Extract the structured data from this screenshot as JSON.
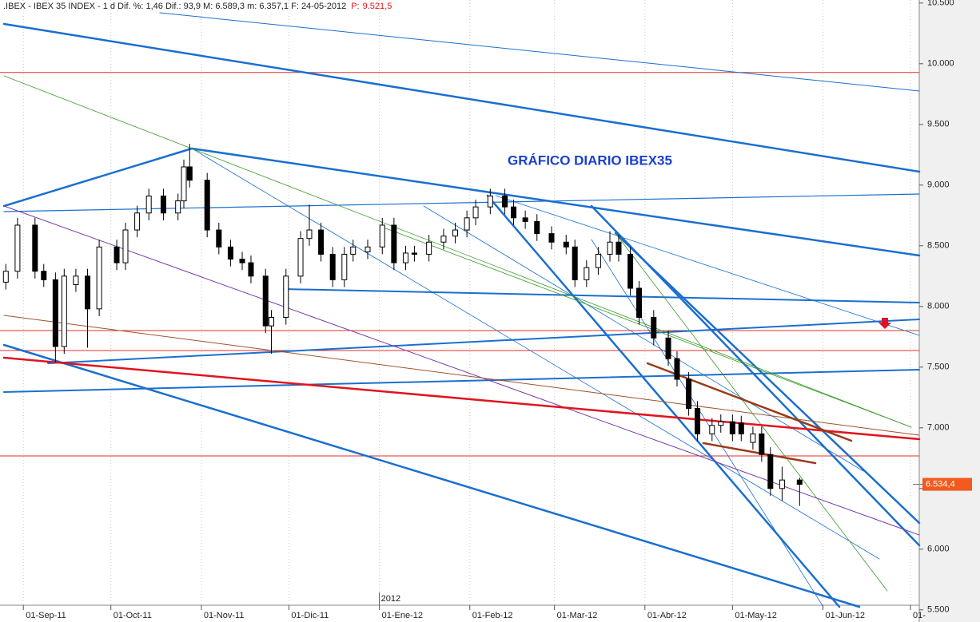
{
  "chart_data": {
    "type": "candlestick",
    "title": ".IBEX - IBEX 35 INDEX - 1 d  Dif. %: 1,46  Dif.: 93,9  M: 6.589,3  m: 6.357,1  F: 24-05-2012",
    "title_pointer_label": "P:",
    "title_pointer_value": "9.521,5",
    "annotation": "GRÁFICO DIARIO IBEX35",
    "x": [
      "2011-08-26",
      "2011-08-30",
      "2011-09-05",
      "2011-09-08",
      "2011-09-12",
      "2011-09-15",
      "2011-09-19",
      "2011-09-23",
      "2011-09-27",
      "2011-10-03",
      "2011-10-06",
      "2011-10-10",
      "2011-10-14",
      "2011-10-19",
      "2011-10-24",
      "2011-10-26",
      "2011-10-28",
      "2011-11-03",
      "2011-11-07",
      "2011-11-11",
      "2011-11-15",
      "2011-11-18",
      "2011-11-23",
      "2011-11-25",
      "2011-11-30",
      "2011-12-05",
      "2011-12-08",
      "2011-12-12",
      "2011-12-16",
      "2011-12-20",
      "2011-12-23",
      "2011-12-28",
      "2012-01-02",
      "2012-01-06",
      "2012-01-10",
      "2012-01-13",
      "2012-01-18",
      "2012-01-23",
      "2012-01-27",
      "2012-01-31",
      "2012-02-03",
      "2012-02-08",
      "2012-02-13",
      "2012-02-16",
      "2012-02-20",
      "2012-02-24",
      "2012-02-29",
      "2012-03-05",
      "2012-03-08",
      "2012-03-12",
      "2012-03-16",
      "2012-03-20",
      "2012-03-23",
      "2012-03-27",
      "2012-03-30",
      "2012-04-04",
      "2012-04-09",
      "2012-04-12",
      "2012-04-16",
      "2012-04-19",
      "2012-04-24",
      "2012-04-27",
      "2012-05-01",
      "2012-05-04",
      "2012-05-08",
      "2012-05-11",
      "2012-05-14",
      "2012-05-18",
      "2012-05-24"
    ],
    "open": [
      8200,
      8290,
      8670,
      8290,
      8220,
      7670,
      8180,
      8250,
      7980,
      8490,
      8360,
      8630,
      8770,
      8910,
      8770,
      8870,
      9150,
      9040,
      8630,
      8490,
      8390,
      8360,
      8250,
      7840,
      7910,
      8250,
      8560,
      8630,
      8430,
      8220,
      8430,
      8450,
      8490,
      8670,
      8360,
      8440,
      8430,
      8530,
      8580,
      8630,
      8730,
      8820,
      8910,
      8820,
      8730,
      8700,
      8600,
      8530,
      8490,
      8220,
      8320,
      8430,
      8530,
      8430,
      8150,
      7910,
      7740,
      7570,
      7400,
      7160,
      6950,
      7020,
      7050,
      7040,
      6880,
      6950,
      6780,
      6500,
      6570
    ],
    "high": [
      8350,
      8730,
      8730,
      8350,
      8280,
      8310,
      8310,
      8310,
      8550,
      8550,
      8690,
      8830,
      8970,
      8970,
      8930,
      9210,
      9340,
      9100,
      8690,
      8550,
      8450,
      8420,
      8310,
      7970,
      8310,
      8620,
      8840,
      8690,
      8490,
      8490,
      8550,
      8550,
      8730,
      8730,
      8500,
      8500,
      8590,
      8640,
      8690,
      8790,
      8880,
      8970,
      8970,
      8880,
      8790,
      8760,
      8660,
      8590,
      8550,
      8380,
      8490,
      8620,
      8590,
      8490,
      8210,
      7970,
      7800,
      7630,
      7460,
      7220,
      7080,
      7110,
      7110,
      7100,
      7010,
      7010,
      6840,
      6680,
      6589.3
    ],
    "low": [
      8140,
      8230,
      8230,
      8160,
      7540,
      7610,
      8120,
      7660,
      7920,
      8300,
      8300,
      8570,
      8710,
      8710,
      8710,
      8810,
      8980,
      8570,
      8430,
      8330,
      8300,
      8190,
      7780,
      7610,
      7850,
      8190,
      8500,
      8370,
      8160,
      8160,
      8370,
      8390,
      8430,
      8300,
      8300,
      8370,
      8370,
      8470,
      8520,
      8570,
      8670,
      8760,
      8760,
      8670,
      8640,
      8540,
      8470,
      8430,
      8160,
      8160,
      8260,
      8370,
      8370,
      8090,
      7850,
      7680,
      7510,
      7340,
      7100,
      6890,
      6890,
      6960,
      6890,
      6890,
      6820,
      6720,
      6440,
      6400,
      6357.1
    ],
    "close": [
      8290,
      8670,
      8290,
      8220,
      7670,
      8250,
      8250,
      7980,
      8490,
      8360,
      8630,
      8770,
      8910,
      8770,
      8870,
      9150,
      9040,
      8630,
      8490,
      8390,
      8360,
      8250,
      7840,
      7910,
      8250,
      8560,
      8630,
      8430,
      8220,
      8430,
      8490,
      8490,
      8670,
      8360,
      8440,
      8430,
      8530,
      8580,
      8630,
      8730,
      8820,
      8910,
      8820,
      8730,
      8700,
      8600,
      8530,
      8490,
      8220,
      8320,
      8430,
      8530,
      8430,
      8150,
      7910,
      7740,
      7570,
      7400,
      7160,
      6950,
      7020,
      7050,
      6950,
      6950,
      6950,
      6780,
      6500,
      6570,
      6534.4
    ],
    "up_color": "#ffffff",
    "down_color": "#000000",
    "xlim": [
      "2011-08-24",
      "2012-07-04"
    ],
    "xticks": [
      {
        "value": "2011-09-01",
        "label": "01-Sep-11"
      },
      {
        "value": "2011-10-01",
        "label": "01-Oct-11"
      },
      {
        "value": "2011-11-01",
        "label": "01-Nov-11"
      },
      {
        "value": "2011-12-01",
        "label": "01-Dic-11"
      },
      {
        "value": "2012-01-01",
        "label": "01-Ene-12"
      },
      {
        "value": "2012-02-01",
        "label": "01-Feb-12"
      },
      {
        "value": "2012-03-01",
        "label": "01-Mar-12"
      },
      {
        "value": "2012-04-01",
        "label": "01-Abr-12"
      },
      {
        "value": "2012-05-01",
        "label": "01-May-12"
      },
      {
        "value": "2012-06-01",
        "label": "01-Jun-12"
      },
      {
        "value": "2012-07-01",
        "label": "01-"
      }
    ],
    "year_marker": {
      "value": "2012-01-01",
      "label": "2012"
    },
    "ylim": [
      5400,
      10525
    ],
    "yticks": [
      {
        "value": 5500,
        "label": "5.500"
      },
      {
        "value": 6000,
        "label": "6.000"
      },
      {
        "value": 6500,
        "label": "6.500"
      },
      {
        "value": 7000,
        "label": "7.000"
      },
      {
        "value": 7500,
        "label": "7.500"
      },
      {
        "value": 8000,
        "label": "8.000"
      },
      {
        "value": 8500,
        "label": "8.500"
      },
      {
        "value": 9000,
        "label": "9.000"
      },
      {
        "value": 9500,
        "label": "9.500"
      },
      {
        "value": 10000,
        "label": "10.000"
      },
      {
        "value": 10500,
        "label": "10.500"
      }
    ],
    "last_price": {
      "value": 6534.4,
      "label": "6.534,4"
    }
  }
}
